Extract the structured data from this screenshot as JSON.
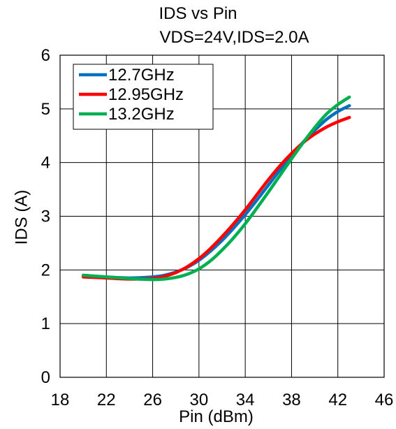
{
  "chart_data": {
    "type": "line",
    "title": "IDS vs Pin",
    "subtitle": "VDS=24V,IDS=2.0A",
    "xlabel": "Pin (dBm)",
    "ylabel": "IDS (A)",
    "xlim": [
      18,
      46
    ],
    "ylim": [
      0,
      6
    ],
    "xticks": [
      "18",
      "22",
      "26",
      "30",
      "34",
      "38",
      "42",
      "46"
    ],
    "yticks": [
      "0",
      "1",
      "2",
      "3",
      "4",
      "5",
      "6"
    ],
    "grid": true,
    "legend": "top-left",
    "series": [
      {
        "name": "12.7GHz",
        "color": "#0070C0",
        "x": [
          20,
          22,
          24,
          26,
          27,
          28,
          29,
          30,
          31,
          32,
          33,
          34,
          35,
          36,
          37,
          38,
          39,
          40,
          41,
          42,
          43
        ],
        "y": [
          1.9,
          1.87,
          1.85,
          1.87,
          1.9,
          1.96,
          2.05,
          2.18,
          2.35,
          2.55,
          2.78,
          3.03,
          3.3,
          3.58,
          3.86,
          4.13,
          4.38,
          4.6,
          4.8,
          4.95,
          5.06
        ]
      },
      {
        "name": "12.95GHz",
        "color": "#FF0000",
        "x": [
          20,
          22,
          24,
          26,
          27,
          28,
          29,
          30,
          31,
          32,
          33,
          34,
          35,
          36,
          37,
          38,
          39,
          40,
          41,
          42,
          43
        ],
        "y": [
          1.87,
          1.85,
          1.83,
          1.84,
          1.88,
          1.95,
          2.06,
          2.21,
          2.4,
          2.62,
          2.86,
          3.12,
          3.4,
          3.68,
          3.94,
          4.17,
          4.37,
          4.53,
          4.66,
          4.76,
          4.84
        ]
      },
      {
        "name": "13.2GHz",
        "color": "#00B050",
        "x": [
          20,
          22,
          24,
          26,
          27,
          28,
          29,
          30,
          31,
          32,
          33,
          34,
          35,
          36,
          37,
          38,
          39,
          40,
          41,
          42,
          43
        ],
        "y": [
          1.9,
          1.87,
          1.84,
          1.82,
          1.83,
          1.86,
          1.92,
          2.02,
          2.17,
          2.37,
          2.6,
          2.86,
          3.15,
          3.45,
          3.76,
          4.07,
          4.37,
          4.65,
          4.9,
          5.08,
          5.22
        ]
      }
    ]
  }
}
